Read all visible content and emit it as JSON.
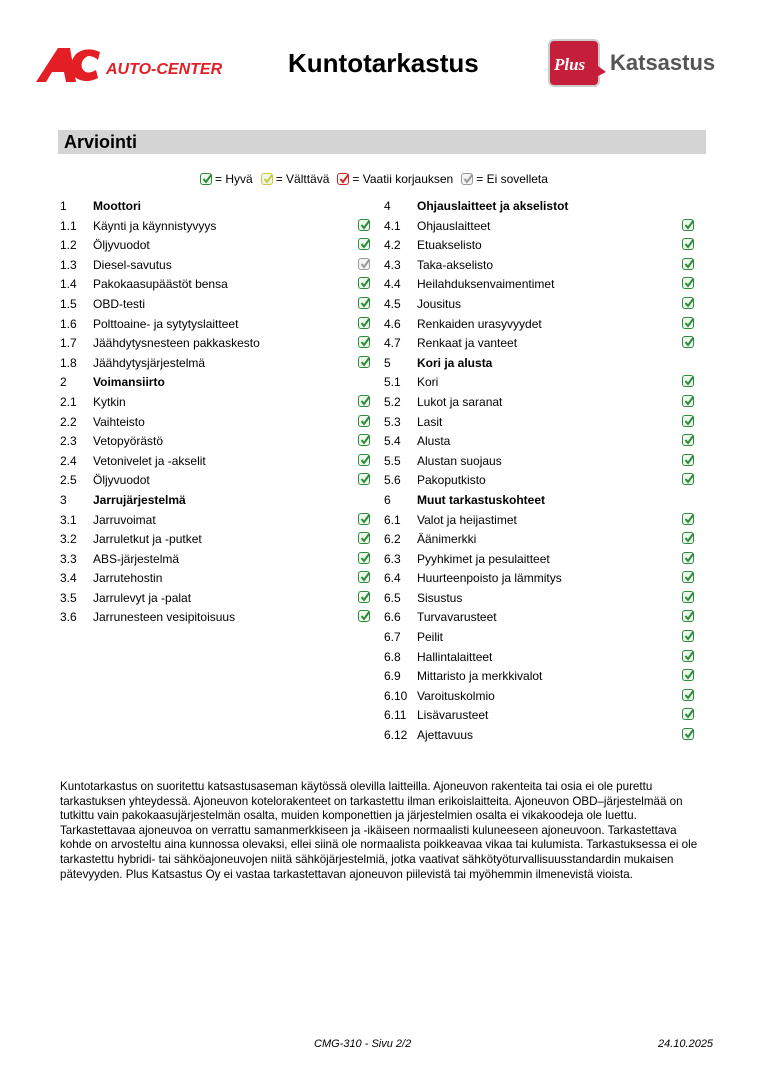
{
  "header": {
    "left_logo_text": "AUTO-CENTER",
    "title": "Kuntotarkastus",
    "right_logo_text": "Plus Katsastus"
  },
  "section_title": "Arviointi",
  "colors": {
    "good": "#2e8b3a",
    "acceptable": "#c8cc3a",
    "repair": "#d0252f",
    "na": "#9a9a9a",
    "brand_red": "#e31e24",
    "plus_red": "#c41e3a"
  },
  "legend": [
    {
      "status": "good",
      "label": "= Hyvä"
    },
    {
      "status": "acceptable",
      "label": "= Välttävä"
    },
    {
      "status": "repair",
      "label": "= Vaatii korjauksen"
    },
    {
      "status": "na",
      "label": "= Ei sovelleta"
    }
  ],
  "left_column": [
    {
      "num": "1",
      "label": "Moottori",
      "header": true
    },
    {
      "num": "1.1",
      "label": "Käynti ja käynnistyvyys",
      "status": "good"
    },
    {
      "num": "1.2",
      "label": "Öljyvuodot",
      "status": "good"
    },
    {
      "num": "1.3",
      "label": "Diesel-savutus",
      "status": "na"
    },
    {
      "num": "1.4",
      "label": "Pakokaasupäästöt bensa",
      "status": "good"
    },
    {
      "num": "1.5",
      "label": "OBD-testi",
      "status": "good"
    },
    {
      "num": "1.6",
      "label": "Polttoaine- ja sytytyslaitteet",
      "status": "good"
    },
    {
      "num": "1.7",
      "label": "Jäähdytysnesteen pakkaskesto",
      "status": "good"
    },
    {
      "num": "1.8",
      "label": "Jäähdytysjärjestelmä",
      "status": "good"
    },
    {
      "num": "2",
      "label": "Voimansiirto",
      "header": true
    },
    {
      "num": "2.1",
      "label": "Kytkin",
      "status": "good"
    },
    {
      "num": "2.2",
      "label": "Vaihteisto",
      "status": "good"
    },
    {
      "num": "2.3",
      "label": "Vetopyörästö",
      "status": "good"
    },
    {
      "num": "2.4",
      "label": "Vetonivelet ja -akselit",
      "status": "good"
    },
    {
      "num": "2.5",
      "label": "Öljyvuodot",
      "status": "good"
    },
    {
      "num": "3",
      "label": "Jarrujärjestelmä",
      "header": true
    },
    {
      "num": "3.1",
      "label": "Jarruvoimat",
      "status": "good"
    },
    {
      "num": "3.2",
      "label": "Jarruletkut ja -putket",
      "status": "good"
    },
    {
      "num": "3.3",
      "label": "ABS-järjestelmä",
      "status": "good"
    },
    {
      "num": "3.4",
      "label": "Jarrutehostin",
      "status": "good"
    },
    {
      "num": "3.5",
      "label": "Jarrulevyt ja -palat",
      "status": "good"
    },
    {
      "num": "3.6",
      "label": "Jarrunesteen vesipitoisuus",
      "status": "good"
    }
  ],
  "right_column": [
    {
      "num": "4",
      "label": "Ohjauslaitteet ja akselistot",
      "header": true
    },
    {
      "num": "4.1",
      "label": "Ohjauslaitteet",
      "status": "good"
    },
    {
      "num": "4.2",
      "label": "Etuakselisto",
      "status": "good"
    },
    {
      "num": "4.3",
      "label": "Taka-akselisto",
      "status": "good"
    },
    {
      "num": "4.4",
      "label": "Heilahduksenvaimentimet",
      "status": "good"
    },
    {
      "num": "4.5",
      "label": "Jousitus",
      "status": "good"
    },
    {
      "num": "4.6",
      "label": "Renkaiden urasyvyydet",
      "status": "good"
    },
    {
      "num": "4.7",
      "label": "Renkaat ja vanteet",
      "status": "good"
    },
    {
      "num": "5",
      "label": "Kori ja alusta",
      "header": true
    },
    {
      "num": "5.1",
      "label": "Kori",
      "status": "good"
    },
    {
      "num": "5.2",
      "label": "Lukot ja saranat",
      "status": "good"
    },
    {
      "num": "5.3",
      "label": "Lasit",
      "status": "good"
    },
    {
      "num": "5.4",
      "label": "Alusta",
      "status": "good"
    },
    {
      "num": "5.5",
      "label": "Alustan suojaus",
      "status": "good"
    },
    {
      "num": "5.6",
      "label": "Pakoputkisto",
      "status": "good"
    },
    {
      "num": "6",
      "label": "Muut tarkastuskohteet",
      "header": true
    },
    {
      "num": "6.1",
      "label": "Valot ja heijastimet",
      "status": "good"
    },
    {
      "num": "6.2",
      "label": "Äänimerkki",
      "status": "good"
    },
    {
      "num": "6.3",
      "label": "Pyyhkimet ja pesulaitteet",
      "status": "good"
    },
    {
      "num": "6.4",
      "label": "Huurteenpoisto ja lämmitys",
      "status": "good"
    },
    {
      "num": "6.5",
      "label": "Sisustus",
      "status": "good"
    },
    {
      "num": "6.6",
      "label": "Turvavarusteet",
      "status": "good"
    },
    {
      "num": "6.7",
      "label": "Peilit",
      "status": "good"
    },
    {
      "num": "6.8",
      "label": "Hallintalaitteet",
      "status": "good"
    },
    {
      "num": "6.9",
      "label": "Mittaristo ja merkkivalot",
      "status": "good"
    },
    {
      "num": "6.10",
      "label": "Varoituskolmio",
      "status": "good"
    },
    {
      "num": "6.11",
      "label": "Lisävarusteet",
      "status": "good"
    },
    {
      "num": "6.12",
      "label": "Ajettavuus",
      "status": "good"
    }
  ],
  "disclaimer": "Kuntotarkastus on suoritettu katsastusaseman käytössä olevilla laitteilla. Ajoneuvon rakenteita tai osia ei ole purettu tarkastuksen yhteydessä. Ajoneuvon kotelorakenteet on tarkastettu ilman erikoislaitteita. Ajoneuvon OBD–järjestelmää on tutkittu vain pakokaasujärjestelmän osalta, muiden komponettien ja järjestelmien osalta ei vikakoodeja ole luettu. Tarkastettavaa ajoneuvoa on verrattu samanmerkkiseen ja -ikäiseen normaalisti kuluneeseen ajoneuvoon. Tarkastettava kohde on arvosteltu aina kunnossa olevaksi, ellei siinä ole normaalista poikkeavaa vikaa tai kulumista. Tarkastuksessa ei ole tarkastettu hybridi- tai sähköajoneuvojen niitä sähköjärjestelmiä, jotka vaativat sähkötyöturvallisuusstandardin mukaisen pätevyyden. Plus Katsastus Oy ei vastaa tarkastettavan ajoneuvon piilevistä tai myöhemmin ilmenevistä vioista.",
  "footer": {
    "page": "CMG-310 - Sivu 2/2",
    "date": "24.10.2025"
  }
}
